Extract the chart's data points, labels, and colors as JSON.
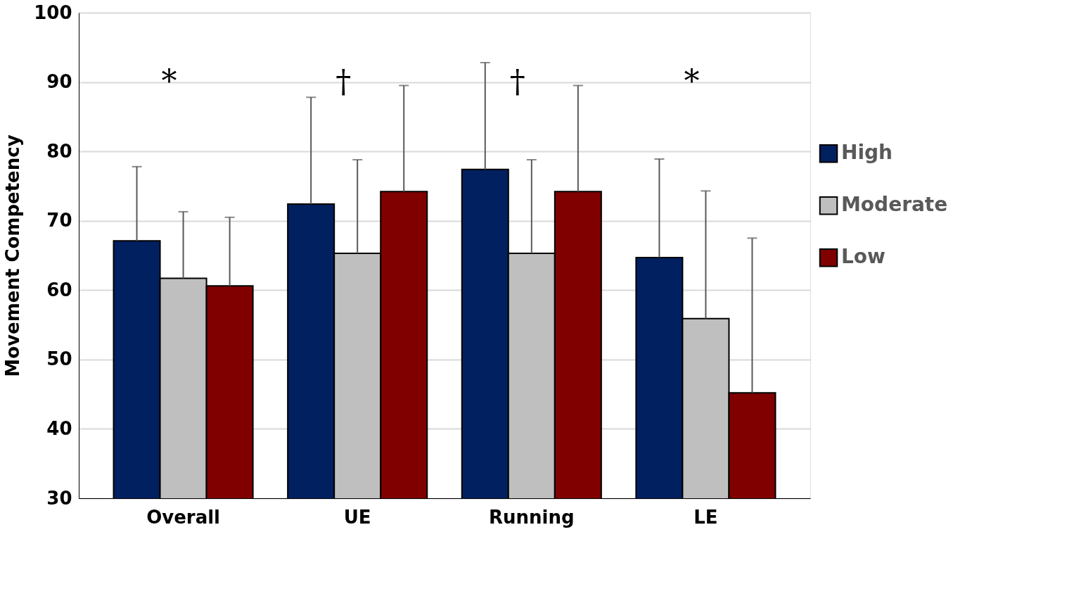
{
  "chart_data": {
    "type": "bar",
    "ylabel": "Movement Competency",
    "categories": [
      "Overall",
      "UE",
      "Running",
      "LE"
    ],
    "series": [
      {
        "name": "High",
        "color": "#002060",
        "values": [
          67.1,
          72.4,
          77.4,
          64.7
        ],
        "errors": [
          [
            67.1,
            77.8
          ],
          [
            72.4,
            87.8
          ],
          [
            77.4,
            92.8
          ],
          [
            64.7,
            78.9
          ]
        ]
      },
      {
        "name": "Moderate",
        "color": "#bfbfbf",
        "values": [
          61.7,
          65.3,
          65.3,
          55.9
        ],
        "errors": [
          [
            61.7,
            71.3
          ],
          [
            65.3,
            78.8
          ],
          [
            65.3,
            78.8
          ],
          [
            55.9,
            74.3
          ]
        ]
      },
      {
        "name": "Low",
        "color": "#800000",
        "values": [
          60.6,
          74.2,
          74.2,
          45.2
        ],
        "errors": [
          [
            60.6,
            70.5
          ],
          [
            74.2,
            89.5
          ],
          [
            74.2,
            89.5
          ],
          [
            45.2,
            67.5
          ]
        ]
      }
    ],
    "ylim": [
      30,
      100
    ],
    "yticks": [
      30,
      40,
      50,
      60,
      70,
      80,
      90,
      100
    ],
    "grid": "y",
    "legend": "right",
    "annotations": [
      "*",
      "†",
      "†",
      "*"
    ]
  }
}
